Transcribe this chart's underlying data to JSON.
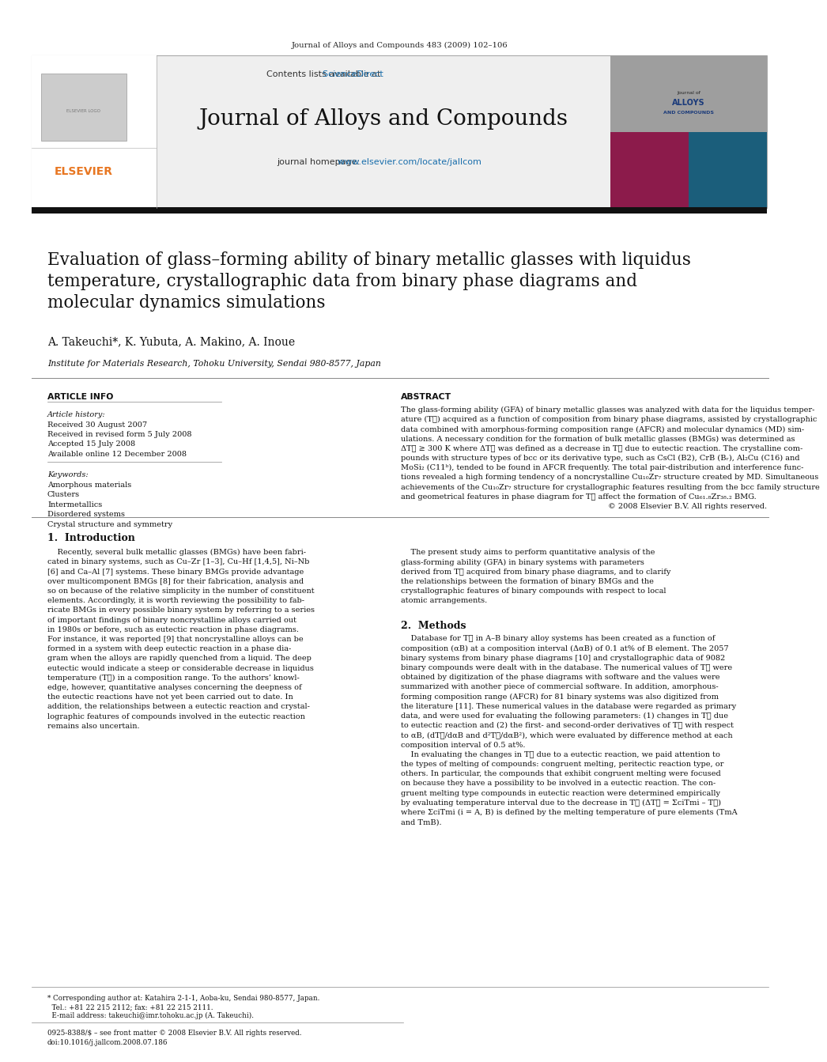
{
  "journal_header": "Journal of Alloys and Compounds 483 (2009) 102–106",
  "contents_line": "Contents lists available at ScienceDirect",
  "journal_name": "Journal of Alloys and Compounds",
  "journal_homepage_plain": "journal homepage: ",
  "journal_homepage_link": "www.elsevier.com/locate/jallcom",
  "title": "Evaluation of glass–forming ability of binary metallic glasses with liquidus\ntemperature, crystallographic data from binary phase diagrams and\nmolecular dynamics simulations",
  "authors": "A. Takeuchi*, K. Yubuta, A. Makino, A. Inoue",
  "affiliation": "Institute for Materials Research, Tohoku University, Sendai 980-8577, Japan",
  "article_info_header": "ARTICLE INFO",
  "abstract_header": "ABSTRACT",
  "article_history_label": "Article history:",
  "article_history": [
    "Received 30 August 2007",
    "Received in revised form 5 July 2008",
    "Accepted 15 July 2008",
    "Available online 12 December 2008"
  ],
  "keywords_label": "Keywords:",
  "keywords": [
    "Amorphous materials",
    "Clusters",
    "Intermetallics",
    "Disordered systems",
    "Crystal structure and symmetry"
  ],
  "abstract_lines": [
    "The glass-forming ability (GFA) of binary metallic glasses was analyzed with data for the liquidus temper-",
    "ature (Tℓ) acquired as a function of composition from binary phase diagrams, assisted by crystallographic",
    "data combined with amorphous-forming composition range (AFCR) and molecular dynamics (MD) sim-",
    "ulations. A necessary condition for the formation of bulk metallic glasses (BMGs) was determined as",
    "ΔTℓ ≥ 300 K where ΔTℓ was defined as a decrease in Tℓ due to eutectic reaction. The crystalline com-",
    "pounds with structure types of bcc or its derivative type, such as CsCl (B2), CrB (Bᵣ), Al₂Cu (C16) and",
    "MoSi₂ (C11ᵇ), tended to be found in AFCR frequently. The total pair-distribution and interference func-",
    "tions revealed a high forming tendency of a noncrystalline Cu₁₀Zr₇ structure created by MD. Simultaneous",
    "achievements of the Cu₁₀Zr₇ structure for crystallographic features resulting from the bcc family structure",
    "and geometrical features in phase diagram for Tℓ affect the formation of Cu₆₁.₈Zr₃₈.₂ BMG.",
    "© 2008 Elsevier B.V. All rights reserved."
  ],
  "intro_header": "1.  Introduction",
  "intro_left_lines": [
    "    Recently, several bulk metallic glasses (BMGs) have been fabri-",
    "cated in binary systems, such as Cu–Zr [1–3], Cu–Hf [1,4,5], Ni–Nb",
    "[6] and Ca–Al [7] systems. These binary BMGs provide advantage",
    "over multicomponent BMGs [8] for their fabrication, analysis and",
    "so on because of the relative simplicity in the number of constituent",
    "elements. Accordingly, it is worth reviewing the possibility to fab-",
    "ricate BMGs in every possible binary system by referring to a series",
    "of important findings of binary noncrystalline alloys carried out",
    "in 1980s or before, such as eutectic reaction in phase diagrams.",
    "For instance, it was reported [9] that noncrystalline alloys can be",
    "formed in a system with deep eutectic reaction in a phase dia-",
    "gram when the alloys are rapidly quenched from a liquid. The deep",
    "eutectic would indicate a steep or considerable decrease in liquidus",
    "temperature (Tℓ) in a composition range. To the authors’ knowl-",
    "edge, however, quantitative analyses concerning the deepness of",
    "the eutectic reactions have not yet been carried out to date. In",
    "addition, the relationships between a eutectic reaction and crystal-",
    "lographic features of compounds involved in the eutectic reaction",
    "remains also uncertain."
  ],
  "intro_right_lines": [
    "    The present study aims to perform quantitative analysis of the",
    "glass-forming ability (GFA) in binary systems with parameters",
    "derived from Tℓ acquired from binary phase diagrams, and to clarify",
    "the relationships between the formation of binary BMGs and the",
    "crystallographic features of binary compounds with respect to local",
    "atomic arrangements."
  ],
  "methods_header": "2.  Methods",
  "methods_lines": [
    "    Database for Tℓ in A–B binary alloy systems has been created as a function of",
    "composition (αB) at a composition interval (ΔαB) of 0.1 at% of B element. The 2057",
    "binary systems from binary phase diagrams [10] and crystallographic data of 9082",
    "binary compounds were dealt with in the database. The numerical values of Tℓ were",
    "obtained by digitization of the phase diagrams with software and the values were",
    "summarized with another piece of commercial software. In addition, amorphous-",
    "forming composition range (AFCR) for 81 binary systems was also digitized from",
    "the literature [11]. These numerical values in the database were regarded as primary",
    "data, and were used for evaluating the following parameters: (1) changes in Tℓ due",
    "to eutectic reaction and (2) the first- and second-order derivatives of Tℓ with respect",
    "to αB, (dTℓ/dαB and d²Tℓ/dαB²), which were evaluated by difference method at each",
    "composition interval of 0.5 at%.",
    "    In evaluating the changes in Tℓ due to a eutectic reaction, we paid attention to",
    "the types of melting of compounds: congruent melting, peritectic reaction type, or",
    "others. In particular, the compounds that exhibit congruent melting were focused",
    "on because they have a possibility to be involved in a eutectic reaction. The con-",
    "gruent melting type compounds in eutectic reaction were determined empirically",
    "by evaluating temperature interval due to the decrease in Tℓ (ΔTℓ = ΣciTmi – Tℓ)",
    "where ΣciTmi (i = A, B) is defined by the melting temperature of pure elements (TmA",
    "and TmB)."
  ],
  "footer_note": "* Corresponding author at: Katahira 2-1-1, Aoba-ku, Sendai 980-8577, Japan.",
  "footer_tel": "  Tel.: +81 22 215 2112; fax: +81 22 215 2111.",
  "footer_email": "  E-mail address: takeuchi@imr.tohoku.ac.jp (A. Takeuchi).",
  "footer_issn1": "0925-8388/$ – see front matter © 2008 Elsevier B.V. All rights reserved.",
  "footer_issn2": "doi:10.1016/j.jallcom.2008.07.186",
  "bg_color": "#ffffff",
  "black_bar_color": "#111111",
  "elsevier_orange": "#e87722",
  "sciencedirect_blue": "#1a6fac",
  "link_blue": "#1a6fac",
  "text_color": "#000000",
  "header_gray": "#efefef",
  "cover_gray": "#9e9e9e",
  "cover_maroon": "#8c1b4b",
  "cover_teal": "#1b5e7b"
}
